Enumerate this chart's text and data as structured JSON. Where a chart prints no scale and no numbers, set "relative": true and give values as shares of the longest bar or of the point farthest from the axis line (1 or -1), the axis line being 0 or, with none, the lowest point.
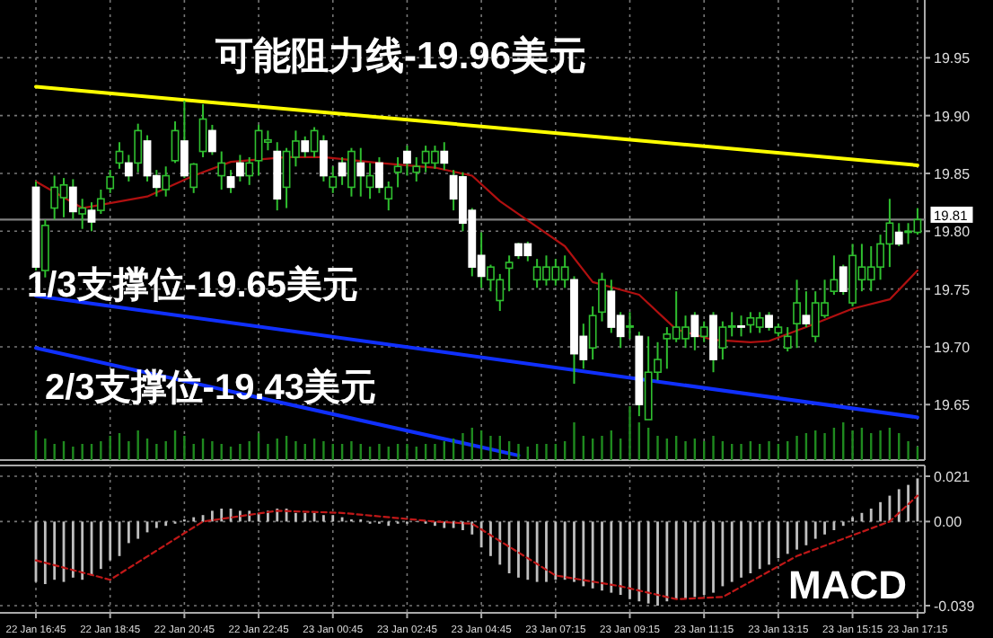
{
  "chart_data": [
    {
      "type": "candlestick",
      "categories": [
        null,
        null,
        null,
        null,
        null,
        null,
        null,
        null,
        null,
        null,
        null,
        null,
        null,
        null,
        null,
        null,
        null,
        null,
        null,
        null,
        null,
        null,
        null,
        null,
        null,
        null,
        null,
        null,
        null,
        null,
        null,
        null,
        null,
        null,
        null,
        null,
        null,
        null,
        null,
        null,
        null,
        null,
        null,
        null,
        null,
        null,
        null,
        null,
        null,
        null,
        null,
        null,
        null,
        null,
        null,
        null,
        null,
        null,
        null,
        null,
        null,
        null,
        null,
        null,
        null,
        null,
        null,
        null,
        null,
        null,
        null,
        null,
        null,
        null,
        null,
        null,
        null,
        null,
        null,
        null,
        null,
        null,
        null,
        null,
        null,
        null,
        null,
        null,
        null,
        null,
        null,
        null,
        null,
        null,
        null,
        null
      ],
      "tick_labels": "y",
      "ylim": [
        19.602,
        20.0
      ],
      "yticks": [
        19.65,
        {
          "value": 19.7,
          "label": "19.70"
        },
        19.75,
        {
          "value": 19.8,
          "label": "19.80"
        },
        19.85,
        {
          "value": 19.9,
          "label": "19.90"
        },
        19.95
      ],
      "grid": true,
      "ref_lines": [
        {
          "axis": "y",
          "value": 19.81,
          "label": "19.81",
          "color": "#808080"
        }
      ],
      "ohlc": [
        [
          19.838,
          19.843,
          19.766,
          19.769
        ],
        [
          19.766,
          19.81,
          19.76,
          19.805
        ],
        [
          19.82,
          19.848,
          19.81,
          19.838
        ],
        [
          19.829,
          19.846,
          19.812,
          19.84
        ],
        [
          19.838,
          19.845,
          19.81,
          19.817
        ],
        [
          19.815,
          19.828,
          19.802,
          19.82
        ],
        [
          19.818,
          19.825,
          19.8,
          19.808
        ],
        [
          19.818,
          19.836,
          19.815,
          19.828
        ],
        [
          19.837,
          19.853,
          19.833,
          19.847
        ],
        [
          19.859,
          19.877,
          19.854,
          19.869
        ],
        [
          19.859,
          19.866,
          19.843,
          19.848
        ],
        [
          19.859,
          19.893,
          19.851,
          19.887
        ],
        [
          19.878,
          19.883,
          19.843,
          19.848
        ],
        [
          19.848,
          19.853,
          19.83,
          19.838
        ],
        [
          19.836,
          19.856,
          19.83,
          19.848
        ],
        [
          19.861,
          19.895,
          19.859,
          19.887
        ],
        [
          19.878,
          19.913,
          19.846,
          19.848
        ],
        [
          19.838,
          19.859,
          19.833,
          19.858
        ],
        [
          19.869,
          19.91,
          19.864,
          19.897
        ],
        [
          19.887,
          19.892,
          19.866,
          19.869
        ],
        [
          19.848,
          19.869,
          19.836,
          19.859
        ],
        [
          19.847,
          19.853,
          19.833,
          19.838
        ],
        [
          19.859,
          19.866,
          19.843,
          19.848
        ],
        [
          19.848,
          19.864,
          19.84,
          19.859
        ],
        [
          19.861,
          19.892,
          19.848,
          19.887
        ],
        [
          19.877,
          19.887,
          19.87,
          19.879
        ],
        [
          19.869,
          19.877,
          19.818,
          19.828
        ],
        [
          19.838,
          19.872,
          19.82,
          19.869
        ],
        [
          19.864,
          19.887,
          19.856,
          19.878
        ],
        [
          19.878,
          19.882,
          19.864,
          19.869
        ],
        [
          19.869,
          19.89,
          19.864,
          19.887
        ],
        [
          19.878,
          19.883,
          19.843,
          19.848
        ],
        [
          19.838,
          19.856,
          19.833,
          19.847
        ],
        [
          19.859,
          19.864,
          19.84,
          19.848
        ],
        [
          19.838,
          19.872,
          19.83,
          19.869
        ],
        [
          19.859,
          19.872,
          19.83,
          19.848
        ],
        [
          19.838,
          19.859,
          19.828,
          19.848
        ],
        [
          19.859,
          19.864,
          19.833,
          19.838
        ],
        [
          19.828,
          19.843,
          19.818,
          19.838
        ],
        [
          19.851,
          19.864,
          19.838,
          19.856
        ],
        [
          19.869,
          19.874,
          19.848,
          19.859
        ],
        [
          19.851,
          19.864,
          19.843,
          19.856
        ],
        [
          19.859,
          19.874,
          19.851,
          19.869
        ],
        [
          19.859,
          19.874,
          19.854,
          19.869
        ],
        [
          19.869,
          19.877,
          19.853,
          19.859
        ],
        [
          19.848,
          19.853,
          19.818,
          19.828
        ],
        [
          19.847,
          19.851,
          19.8,
          19.807
        ],
        [
          19.818,
          19.82,
          19.761,
          19.769
        ],
        [
          19.779,
          19.799,
          19.751,
          19.761
        ],
        [
          19.758,
          19.771,
          19.748,
          19.769
        ],
        [
          19.74,
          19.763,
          19.731,
          19.758
        ],
        [
          19.768,
          19.779,
          19.748,
          19.773
        ],
        [
          19.789,
          19.79,
          19.776,
          19.779
        ],
        [
          19.789,
          19.791,
          19.774,
          19.779
        ],
        [
          19.758,
          19.776,
          19.751,
          19.769
        ],
        [
          19.758,
          19.779,
          19.753,
          19.769
        ],
        [
          19.758,
          19.776,
          19.753,
          19.769
        ],
        [
          19.758,
          19.779,
          19.751,
          19.769
        ],
        [
          19.758,
          19.761,
          19.668,
          19.694
        ],
        [
          19.709,
          19.72,
          19.681,
          19.689
        ],
        [
          19.699,
          19.735,
          19.689,
          19.727
        ],
        [
          19.73,
          19.764,
          19.722,
          19.758
        ],
        [
          19.748,
          19.758,
          19.712,
          19.717
        ],
        [
          19.727,
          19.73,
          19.699,
          19.709
        ],
        [
          19.717,
          19.73,
          19.707,
          19.718
        ],
        [
          19.709,
          19.713,
          19.64,
          19.65
        ],
        [
          19.637,
          19.709,
          19.637,
          19.678
        ],
        [
          19.678,
          19.704,
          19.671,
          19.689
        ],
        [
          19.707,
          19.717,
          19.681,
          19.711
        ],
        [
          19.707,
          19.748,
          19.704,
          19.717
        ],
        [
          19.707,
          19.727,
          19.699,
          19.717
        ],
        [
          19.727,
          19.73,
          19.697,
          19.709
        ],
        [
          19.709,
          19.722,
          19.704,
          19.717
        ],
        [
          19.727,
          19.73,
          19.678,
          19.689
        ],
        [
          19.699,
          19.722,
          19.689,
          19.717
        ],
        [
          19.717,
          19.73,
          19.709,
          19.718
        ],
        [
          19.718,
          19.727,
          19.709,
          19.717
        ],
        [
          19.719,
          19.73,
          19.712,
          19.725
        ],
        [
          19.717,
          19.73,
          19.712,
          19.725
        ],
        [
          19.727,
          19.73,
          19.714,
          19.717
        ],
        [
          19.712,
          19.72,
          19.709,
          19.717
        ],
        [
          19.699,
          19.717,
          19.696,
          19.709
        ],
        [
          19.72,
          19.758,
          19.699,
          19.738
        ],
        [
          19.727,
          19.748,
          19.717,
          19.72
        ],
        [
          19.709,
          19.748,
          19.704,
          19.738
        ],
        [
          19.727,
          19.758,
          19.725,
          19.738
        ],
        [
          19.748,
          19.779,
          19.745,
          19.758
        ],
        [
          19.769,
          19.771,
          19.745,
          19.748
        ],
        [
          19.738,
          19.789,
          19.735,
          19.779
        ],
        [
          19.758,
          19.789,
          19.748,
          19.769
        ],
        [
          19.758,
          19.787,
          19.748,
          19.769
        ],
        [
          19.769,
          19.797,
          19.758,
          19.789
        ],
        [
          19.789,
          19.828,
          19.769,
          19.807
        ],
        [
          19.799,
          19.807,
          19.787,
          19.789
        ],
        [
          19.799,
          19.807,
          19.789,
          19.8
        ],
        [
          19.799,
          19.82,
          19.797,
          19.81
        ]
      ],
      "series": [
        {
          "type": "line",
          "color": "#b01010",
          "values": [
            19.843,
            null,
            null,
            null,
            null,
            19.82,
            null,
            null,
            null,
            null,
            null,
            null,
            19.83,
            null,
            null,
            null,
            null,
            19.848,
            null,
            null,
            null,
            19.86,
            null,
            null,
            null,
            null,
            null,
            19.864,
            null,
            null,
            null,
            19.864,
            null,
            null,
            null,
            null,
            null,
            19.859,
            null,
            null,
            null,
            null,
            null,
            19.855,
            null,
            null,
            null,
            19.848,
            null,
            null,
            19.826,
            null,
            null,
            null,
            null,
            null,
            null,
            19.787,
            null,
            null,
            19.756,
            null,
            null,
            null,
            null,
            19.745,
            null,
            null,
            null,
            19.715,
            null,
            null,
            null,
            19.706,
            null,
            null,
            null,
            19.704,
            null,
            19.705,
            null,
            null,
            null,
            19.717,
            null,
            null,
            null,
            null,
            19.733,
            null,
            null,
            null,
            19.741,
            null,
            null,
            19.766
          ]
        },
        {
          "type": "line",
          "name": "可能阻力线-19.96美元",
          "color": "#ffff00",
          "values": [
            19.925,
            null,
            null,
            null,
            null,
            null,
            null,
            null,
            null,
            null,
            null,
            null,
            null,
            null,
            null,
            null,
            null,
            null,
            null,
            null,
            null,
            null,
            null,
            null,
            null,
            null,
            null,
            null,
            null,
            null,
            null,
            null,
            null,
            null,
            null,
            null,
            null,
            null,
            null,
            null,
            null,
            null,
            null,
            null,
            null,
            null,
            null,
            null,
            null,
            null,
            null,
            null,
            null,
            null,
            null,
            null,
            null,
            null,
            null,
            null,
            null,
            null,
            null,
            null,
            null,
            null,
            null,
            null,
            null,
            null,
            null,
            null,
            null,
            null,
            null,
            null,
            null,
            null,
            null,
            null,
            null,
            null,
            null,
            null,
            null,
            null,
            null,
            null,
            null,
            null,
            null,
            null,
            null,
            null,
            null,
            19.857
          ]
        },
        {
          "type": "line",
          "name": "1/3支撑位-19.65美元",
          "color": "#1030ff",
          "values": [
            19.744,
            null,
            null,
            null,
            null,
            null,
            null,
            null,
            null,
            null,
            null,
            null,
            null,
            null,
            null,
            null,
            null,
            null,
            null,
            null,
            null,
            null,
            null,
            null,
            null,
            null,
            null,
            null,
            null,
            null,
            null,
            null,
            null,
            null,
            null,
            null,
            null,
            null,
            null,
            null,
            null,
            null,
            null,
            null,
            null,
            null,
            null,
            null,
            null,
            null,
            null,
            null,
            null,
            null,
            null,
            null,
            null,
            null,
            null,
            null,
            null,
            null,
            null,
            null,
            null,
            null,
            null,
            null,
            null,
            null,
            null,
            null,
            null,
            null,
            null,
            null,
            null,
            null,
            null,
            null,
            null,
            null,
            null,
            null,
            null,
            null,
            null,
            null,
            null,
            null,
            null,
            null,
            null,
            null,
            null,
            19.639
          ]
        },
        {
          "type": "line",
          "name": "2/3支撑位-19.43美元",
          "color": "#1030ff",
          "values": [
            19.699,
            null,
            null,
            null,
            null,
            null,
            null,
            null,
            null,
            null,
            null,
            null,
            null,
            null,
            null,
            null,
            null,
            null,
            null,
            null,
            null,
            null,
            null,
            null,
            null,
            null,
            null,
            null,
            null,
            null,
            null,
            null,
            null,
            null,
            null,
            null,
            null,
            null,
            null,
            null,
            null,
            null,
            null,
            null,
            null,
            null,
            null,
            null,
            null,
            null,
            null,
            null,
            19.606,
            null,
            null,
            null,
            null,
            null,
            null,
            null,
            null,
            null,
            null,
            null,
            null,
            null,
            null,
            null,
            null,
            null,
            null,
            null,
            null,
            null,
            null,
            null,
            null,
            null,
            null,
            null,
            null,
            null,
            null,
            null,
            null,
            null,
            null,
            null,
            null,
            null,
            null,
            null,
            null,
            null,
            null,
            null
          ]
        }
      ]
    },
    {
      "type": "bar",
      "relative": true,
      "tick_labels": false,
      "color": "#1f8a1f",
      "categories": [
        null,
        null,
        null,
        null,
        null,
        null,
        null,
        null,
        null,
        null,
        null,
        null,
        null,
        null,
        null,
        null,
        null,
        null,
        null,
        null,
        null,
        null,
        null,
        null,
        null,
        null,
        null,
        null,
        null,
        null,
        null,
        null,
        null,
        null,
        null,
        null,
        null,
        null,
        null,
        null,
        null,
        null,
        null,
        null,
        null,
        null,
        null,
        null,
        null,
        null,
        null,
        null,
        null,
        null,
        null,
        null,
        null,
        null,
        null,
        null,
        null,
        null,
        null,
        null,
        null,
        null,
        null,
        null,
        null,
        null,
        null,
        null,
        null,
        null,
        null,
        null,
        null,
        null,
        null,
        null,
        null,
        null,
        null,
        null,
        null,
        null,
        null,
        null,
        null,
        null,
        null,
        null,
        null,
        null,
        null,
        null
      ],
      "values": [
        0.55,
        0.4,
        0.3,
        0.35,
        0.25,
        0.3,
        0.3,
        0.35,
        0.45,
        0.5,
        0.35,
        0.55,
        0.4,
        0.3,
        0.35,
        0.55,
        0.45,
        0.3,
        0.4,
        0.35,
        0.3,
        0.25,
        0.3,
        0.35,
        0.5,
        0.3,
        0.4,
        0.45,
        0.35,
        0.3,
        0.4,
        0.35,
        0.3,
        0.3,
        0.35,
        0.3,
        0.25,
        0.3,
        0.25,
        0.3,
        0.3,
        0.25,
        0.3,
        0.3,
        0.35,
        0.4,
        0.5,
        0.6,
        0.55,
        0.45,
        0.45,
        0.35,
        0.3,
        0.25,
        0.3,
        0.3,
        0.3,
        0.35,
        0.7,
        0.45,
        0.4,
        0.45,
        0.55,
        0.4,
        1.0,
        0.7,
        0.6,
        0.45,
        0.4,
        0.45,
        0.35,
        0.4,
        0.35,
        0.45,
        0.35,
        0.3,
        0.3,
        0.35,
        0.3,
        0.35,
        0.3,
        0.35,
        0.45,
        0.5,
        0.55,
        0.5,
        0.6,
        0.7,
        0.55,
        0.6,
        0.5,
        0.55,
        0.6,
        0.5,
        0.35,
        0.25
      ]
    },
    {
      "type": "bar",
      "title": "MACD",
      "color": "#c0c0c0",
      "categories": [
        "22 Jan 16:45",
        null,
        null,
        null,
        null,
        null,
        null,
        null,
        "22 Jan 18:45",
        null,
        null,
        null,
        null,
        null,
        null,
        null,
        "22 Jan 20:45",
        null,
        null,
        null,
        null,
        null,
        null,
        null,
        "22 Jan 22:45",
        null,
        null,
        null,
        null,
        null,
        null,
        null,
        "23 Jan 00:45",
        null,
        null,
        null,
        null,
        null,
        null,
        null,
        "23 Jan 02:45",
        null,
        null,
        null,
        null,
        null,
        null,
        null,
        "23 Jan 04:45",
        null,
        null,
        null,
        null,
        null,
        null,
        null,
        "23 Jan 07:15",
        null,
        null,
        null,
        null,
        null,
        null,
        null,
        "23 Jan 09:15",
        null,
        null,
        null,
        null,
        null,
        null,
        null,
        "23 Jan 11:15",
        null,
        null,
        null,
        null,
        null,
        null,
        null,
        "23 Jan 13:15",
        null,
        null,
        null,
        null,
        null,
        null,
        null,
        "23 Jan 15:15",
        null,
        null,
        null,
        null,
        null,
        null,
        "23 Jan 17:15"
      ],
      "ylim": [
        -0.039,
        0.021
      ],
      "yticks": [
        -0.039,
        {
          "value": 0,
          "label": "0.00"
        },
        0.021
      ],
      "grid": true,
      "values": [
        -0.028,
        -0.029,
        -0.027,
        -0.028,
        -0.026,
        -0.027,
        -0.025,
        -0.022,
        -0.018,
        -0.016,
        -0.01,
        -0.008,
        -0.005,
        -0.003,
        -0.002,
        -0.001,
        0.001,
        0.002,
        0.003,
        0.005,
        0.006,
        0.006,
        0.005,
        0.005,
        0.004,
        0.005,
        0.006,
        0.006,
        0.004,
        0.004,
        0.004,
        0.003,
        0.003,
        0.002,
        0.001,
        0.001,
        -0.001,
        -0.001,
        -0.002,
        -0.001,
        -0.001,
        0.0,
        -0.001,
        -0.002,
        -0.003,
        -0.003,
        -0.004,
        -0.006,
        -0.012,
        -0.016,
        -0.02,
        -0.024,
        -0.026,
        -0.027,
        -0.028,
        -0.028,
        -0.027,
        -0.027,
        -0.028,
        -0.03,
        -0.031,
        -0.032,
        -0.033,
        -0.034,
        -0.036,
        -0.037,
        -0.038,
        -0.039,
        -0.037,
        -0.036,
        -0.036,
        -0.035,
        -0.034,
        -0.033,
        -0.03,
        -0.028,
        -0.026,
        -0.024,
        -0.022,
        -0.02,
        -0.017,
        -0.015,
        -0.013,
        -0.011,
        -0.008,
        -0.006,
        -0.004,
        -0.002,
        0.002,
        0.004,
        0.006,
        0.009,
        0.012,
        0.015,
        0.017,
        0.02
      ],
      "series": [
        {
          "type": "line",
          "line_style": "dashed",
          "color": "#c01818",
          "values": [
            -0.018,
            null,
            null,
            null,
            null,
            null,
            null,
            null,
            -0.027,
            null,
            null,
            null,
            null,
            null,
            null,
            null,
            null,
            null,
            0.0,
            null,
            null,
            null,
            null,
            null,
            null,
            null,
            0.005,
            null,
            null,
            null,
            null,
            null,
            null,
            0.004,
            null,
            null,
            null,
            null,
            null,
            null,
            null,
            null,
            null,
            0.0,
            null,
            null,
            null,
            -0.001,
            null,
            null,
            null,
            null,
            null,
            null,
            null,
            null,
            -0.025,
            null,
            null,
            null,
            null,
            null,
            null,
            -0.03,
            null,
            null,
            null,
            null,
            null,
            -0.036,
            null,
            null,
            null,
            null,
            -0.035,
            null,
            null,
            null,
            null,
            null,
            null,
            null,
            -0.016,
            null,
            null,
            null,
            null,
            null,
            null,
            null,
            null,
            null,
            0.0,
            null,
            null,
            0.012
          ]
        }
      ]
    }
  ]
}
